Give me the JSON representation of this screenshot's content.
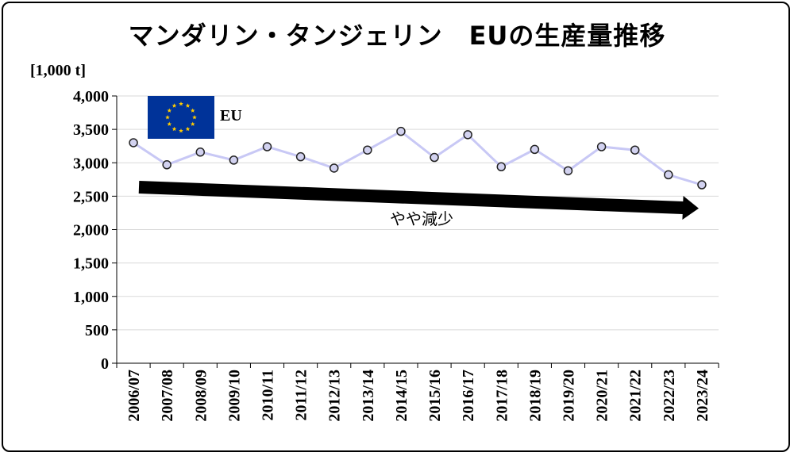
{
  "chart_data": {
    "type": "line",
    "title": "マンダリン・タンジェリン　EUの生産量推移",
    "ylabel": "[1,000 t]",
    "xlabel": "",
    "ylim": [
      0,
      4000
    ],
    "yticks": [
      "0",
      "500",
      "1,000",
      "1,500",
      "2,000",
      "2,500",
      "3,000",
      "3,500",
      "4,000"
    ],
    "grid": true,
    "categories": [
      "2006/07",
      "2007/08",
      "2008/09",
      "2009/10",
      "2010/11",
      "2011/12",
      "2012/13",
      "2013/14",
      "2014/15",
      "2015/16",
      "2016/17",
      "2017/18",
      "2018/19",
      "2019/20",
      "2020/21",
      "2021/22",
      "2022/23",
      "2023/24"
    ],
    "series": [
      {
        "name": "EU",
        "values": [
          3300,
          2970,
          3160,
          3040,
          3240,
          3090,
          2920,
          3190,
          3470,
          3080,
          3420,
          2940,
          3200,
          2880,
          3240,
          3190,
          2820,
          2670
        ],
        "color": "#c8c8f5",
        "marker_fill": "#d2d2f0"
      }
    ],
    "legend": {
      "label": "EU",
      "placement": "top-left"
    },
    "annotation": {
      "text": "やや減少",
      "arrow_color": "#000000"
    }
  }
}
